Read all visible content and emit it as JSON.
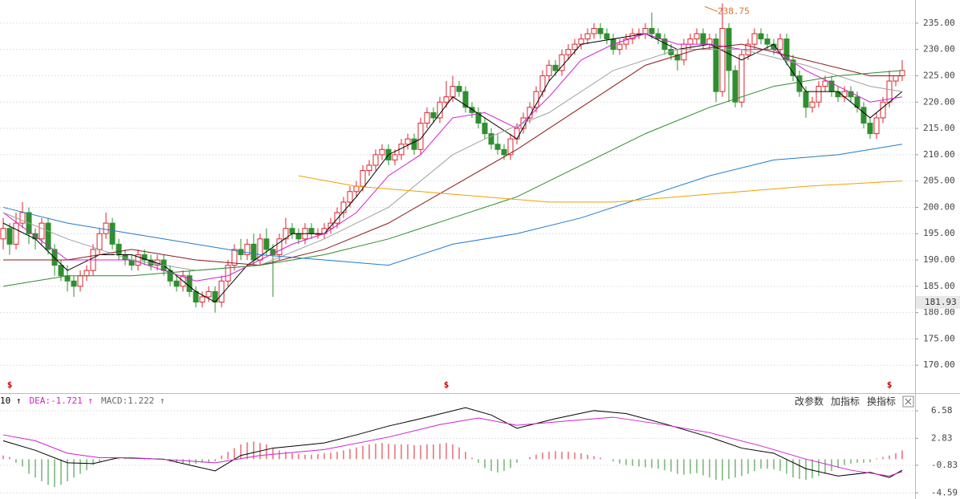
{
  "chart_data": {
    "type": "candlestick",
    "up_color": "#d9262f",
    "down_color": "#2f8f2f",
    "ylim": [
      164.7,
      239.4
    ],
    "yticks": [
      {
        "value": 235,
        "label": "235.00"
      },
      {
        "value": 230,
        "label": "230.00"
      },
      {
        "value": 225,
        "label": "225.00"
      },
      {
        "value": 220,
        "label": "220.00"
      },
      {
        "value": 215,
        "label": "215.00"
      },
      {
        "value": 210,
        "label": "210.00"
      },
      {
        "value": 205,
        "label": "205.00"
      },
      {
        "value": 200,
        "label": "200.00"
      },
      {
        "value": 195,
        "label": "195.00"
      },
      {
        "value": 190,
        "label": "190.00"
      },
      {
        "value": 185,
        "label": "185.00"
      },
      {
        "value": 180,
        "label": "180.00"
      },
      {
        "value": 175,
        "label": "175.00"
      },
      {
        "value": 170,
        "label": "170.00"
      }
    ],
    "grid": true,
    "cursor_price": 181.93,
    "peak_index": 112,
    "marker_text": "$",
    "marker_indices": [
      1,
      69,
      138
    ],
    "candles": [
      [
        194,
        198,
        192,
        196
      ],
      [
        196,
        197,
        191,
        193
      ],
      [
        193,
        199,
        192,
        197
      ],
      [
        197,
        201,
        196,
        199
      ],
      [
        199,
        200,
        193,
        195
      ],
      [
        195,
        196,
        192,
        194
      ],
      [
        194,
        198,
        193,
        197
      ],
      [
        197,
        198,
        191,
        192
      ],
      [
        192,
        193,
        187,
        189
      ],
      [
        189,
        190,
        186,
        187
      ],
      [
        187,
        189,
        184,
        186
      ],
      [
        186,
        187,
        183,
        185
      ],
      [
        185,
        188,
        184,
        187
      ],
      [
        187,
        189,
        186,
        188
      ],
      [
        188,
        193,
        187,
        192
      ],
      [
        192,
        196,
        191,
        195
      ],
      [
        195,
        199,
        194,
        197
      ],
      [
        197,
        198,
        192,
        193
      ],
      [
        193,
        194,
        190,
        191
      ],
      [
        191,
        192,
        189,
        190
      ],
      [
        190,
        191,
        188,
        189
      ],
      [
        189,
        192,
        188,
        191
      ],
      [
        191,
        192,
        189,
        190
      ],
      [
        190,
        191,
        188,
        189
      ],
      [
        189,
        191,
        188,
        190
      ],
      [
        190,
        191,
        187,
        188
      ],
      [
        188,
        189,
        185,
        186
      ],
      [
        186,
        187,
        184,
        185
      ],
      [
        185,
        188,
        184,
        187
      ],
      [
        187,
        188,
        183,
        184
      ],
      [
        184,
        185,
        181,
        182
      ],
      [
        182,
        184,
        181,
        183
      ],
      [
        183,
        185,
        182,
        184
      ],
      [
        184,
        185,
        180,
        182
      ],
      [
        182,
        187,
        181,
        186
      ],
      [
        186,
        190,
        185,
        189
      ],
      [
        189,
        193,
        188,
        192
      ],
      [
        192,
        194,
        190,
        191
      ],
      [
        191,
        194,
        190,
        193
      ],
      [
        193,
        195,
        189,
        190
      ],
      [
        190,
        195,
        189,
        194
      ],
      [
        194,
        196,
        191,
        192
      ],
      [
        192,
        193,
        183,
        191
      ],
      [
        191,
        195,
        190,
        194
      ],
      [
        194,
        198,
        193,
        196
      ],
      [
        196,
        197,
        194,
        195
      ],
      [
        195,
        196,
        193,
        194
      ],
      [
        194,
        197,
        193,
        196
      ],
      [
        196,
        197,
        194,
        195
      ],
      [
        195,
        196,
        194,
        195
      ],
      [
        195,
        197,
        194,
        196
      ],
      [
        196,
        198,
        195,
        197
      ],
      [
        197,
        200,
        196,
        199
      ],
      [
        199,
        202,
        198,
        201
      ],
      [
        201,
        204,
        200,
        203
      ],
      [
        203,
        205,
        202,
        204
      ],
      [
        204,
        208,
        203,
        207
      ],
      [
        207,
        209,
        206,
        208
      ],
      [
        208,
        211,
        207,
        210
      ],
      [
        210,
        212,
        209,
        211
      ],
      [
        211,
        212,
        208,
        209
      ],
      [
        209,
        211,
        208,
        210
      ],
      [
        210,
        213,
        209,
        212
      ],
      [
        212,
        214,
        211,
        213
      ],
      [
        213,
        214,
        210,
        211
      ],
      [
        211,
        217,
        210,
        216
      ],
      [
        216,
        219,
        215,
        218
      ],
      [
        218,
        219,
        216,
        217
      ],
      [
        217,
        221,
        216,
        220
      ],
      [
        220,
        224,
        219,
        221
      ],
      [
        221,
        225,
        220,
        223
      ],
      [
        223,
        224,
        221,
        222
      ],
      [
        222,
        223,
        218,
        219
      ],
      [
        219,
        220,
        217,
        218
      ],
      [
        218,
        219,
        215,
        216
      ],
      [
        216,
        217,
        213,
        214
      ],
      [
        214,
        215,
        211,
        212
      ],
      [
        212,
        214,
        210,
        211
      ],
      [
        211,
        212,
        209,
        210
      ],
      [
        210,
        214,
        209,
        213
      ],
      [
        213,
        216,
        212,
        215
      ],
      [
        215,
        218,
        214,
        217
      ],
      [
        217,
        220,
        216,
        219
      ],
      [
        219,
        223,
        218,
        222
      ],
      [
        222,
        226,
        221,
        225
      ],
      [
        225,
        228,
        224,
        227
      ],
      [
        227,
        228,
        225,
        226
      ],
      [
        226,
        230,
        225,
        229
      ],
      [
        229,
        231,
        228,
        230
      ],
      [
        230,
        232,
        229,
        231
      ],
      [
        231,
        233,
        230,
        232
      ],
      [
        232,
        234,
        231,
        233
      ],
      [
        233,
        235,
        232,
        234
      ],
      [
        234,
        235,
        232,
        233
      ],
      [
        233,
        234,
        231,
        232
      ],
      [
        232,
        233,
        229,
        230
      ],
      [
        230,
        232,
        229,
        231
      ],
      [
        231,
        233,
        230,
        232
      ],
      [
        232,
        234,
        231,
        233
      ],
      [
        233,
        234,
        232,
        233
      ],
      [
        233,
        235,
        232,
        234
      ],
      [
        234,
        237,
        232,
        233
      ],
      [
        233,
        234,
        231,
        232
      ],
      [
        232,
        233,
        229,
        230
      ],
      [
        230,
        231,
        228,
        229
      ],
      [
        229,
        230,
        226,
        228
      ],
      [
        228,
        232,
        227,
        231
      ],
      [
        231,
        233,
        230,
        232
      ],
      [
        232,
        234,
        231,
        233
      ],
      [
        233,
        234,
        230,
        231
      ],
      [
        231,
        233,
        230,
        232
      ],
      [
        232,
        233,
        220,
        222
      ],
      [
        222,
        238.75,
        221,
        234
      ],
      [
        234,
        235,
        220,
        226
      ],
      [
        226,
        227,
        219,
        220
      ],
      [
        220,
        230,
        219,
        229
      ],
      [
        229,
        232,
        228,
        231
      ],
      [
        231,
        234,
        230,
        233
      ],
      [
        233,
        234,
        231,
        232
      ],
      [
        232,
        233,
        230,
        231
      ],
      [
        231,
        232,
        229,
        230
      ],
      [
        230,
        233,
        229,
        232
      ],
      [
        232,
        233,
        227,
        228
      ],
      [
        228,
        229,
        224,
        225
      ],
      [
        225,
        226,
        221,
        222
      ],
      [
        222,
        223,
        217,
        219
      ],
      [
        219,
        221,
        218,
        220
      ],
      [
        220,
        224,
        219,
        223
      ],
      [
        223,
        225,
        222,
        224
      ],
      [
        224,
        225,
        221,
        222
      ],
      [
        222,
        223,
        220,
        221
      ],
      [
        221,
        223,
        220,
        222
      ],
      [
        222,
        223,
        220,
        221
      ],
      [
        221,
        222,
        218,
        219
      ],
      [
        219,
        220,
        215,
        216
      ],
      [
        216,
        217,
        213,
        214
      ],
      [
        214,
        218,
        213,
        217
      ],
      [
        217,
        221,
        216,
        220
      ],
      [
        220,
        226,
        219,
        224
      ],
      [
        224,
        225,
        223,
        225
      ],
      [
        225,
        228,
        224,
        226
      ]
    ],
    "series": [
      {
        "color": "#000000",
        "x": [
          0,
          5,
          10,
          15,
          20,
          25,
          30,
          33,
          38,
          45,
          50,
          55,
          60,
          65,
          70,
          75,
          80,
          85,
          90,
          95,
          100,
          105,
          110,
          115,
          120,
          125,
          130,
          135,
          140
        ],
        "values": [
          197,
          194,
          188,
          191,
          191,
          189,
          184,
          182,
          189,
          195,
          195,
          202,
          210,
          213,
          221,
          217,
          213,
          224,
          231,
          232,
          233,
          230,
          231,
          228,
          231,
          222,
          222,
          217,
          222
        ]
      },
      {
        "color": "#d020d0",
        "x": [
          0,
          10,
          20,
          30,
          35,
          45,
          50,
          55,
          60,
          65,
          70,
          75,
          80,
          85,
          90,
          95,
          100,
          105,
          110,
          115,
          120,
          125,
          130,
          135,
          140
        ],
        "values": [
          199,
          190,
          190,
          186,
          187,
          193,
          195,
          199,
          206,
          210,
          217,
          218,
          215,
          221,
          228,
          231,
          233,
          231,
          231,
          230,
          230,
          226,
          223,
          220,
          221
        ]
      },
      {
        "color": "#a0a0a0",
        "x": [
          0,
          10,
          20,
          30,
          40,
          50,
          60,
          70,
          75,
          85,
          95,
          105,
          115,
          125,
          135,
          140
        ],
        "values": [
          199,
          194,
          190,
          188,
          189,
          194,
          200,
          210,
          213,
          218,
          226,
          230,
          230,
          227,
          223,
          222
        ]
      },
      {
        "color": "#8b1a1a",
        "x": [
          0,
          10,
          20,
          30,
          40,
          50,
          60,
          70,
          80,
          90,
          100,
          108,
          115,
          125,
          135,
          140
        ],
        "values": [
          190,
          190,
          192,
          190,
          189,
          192,
          197,
          204,
          211,
          219,
          227,
          230,
          231,
          228,
          225,
          225
        ]
      },
      {
        "color": "#2e8b2e",
        "x": [
          0,
          10,
          20,
          30,
          40,
          50,
          60,
          70,
          80,
          90,
          100,
          110,
          120,
          130,
          140
        ],
        "values": [
          185,
          187,
          187,
          188,
          189,
          191,
          194,
          198,
          202,
          208,
          214,
          219,
          223,
          225,
          226
        ]
      },
      {
        "color": "#1e7bd0",
        "x": [
          0,
          10,
          20,
          30,
          40,
          50,
          60,
          70,
          80,
          90,
          100,
          110,
          120,
          130,
          140
        ],
        "values": [
          200,
          197,
          195,
          193,
          191,
          190,
          189,
          193,
          195,
          198,
          202,
          206,
          209,
          210,
          212
        ]
      },
      {
        "color": "#f0a000",
        "x": [
          46,
          55,
          65,
          75,
          85,
          95,
          105,
          115,
          125,
          140
        ],
        "values": [
          206,
          204,
          203,
          202,
          201,
          201,
          202,
          203,
          204,
          205
        ]
      }
    ],
    "macd": {
      "header": [
        "10 ↑",
        "DEA:-1.721 ↑",
        "MACD:1.222 ↑"
      ],
      "header_colors": [
        "#000000",
        "#d020d0",
        "#666666"
      ],
      "buttons": [
        "改参数",
        "加指标",
        "换指标"
      ],
      "ylim": [
        -5.42,
        8.98
      ],
      "yticks": [
        6.58,
        2.83,
        -0.83,
        -4.59
      ],
      "histogram": [
        0.5,
        0.3,
        -0.5,
        -1,
        -2,
        -2.5,
        -3,
        -3.5,
        -3.8,
        -3.5,
        -3,
        -2.5,
        -2,
        -1.5,
        -0.8,
        -0.3,
        0,
        0.1,
        0.1,
        0.1,
        0,
        0,
        -0.1,
        0,
        0,
        0,
        -0.3,
        -0.5,
        -0.6,
        -0.7,
        -0.6,
        -0.5,
        -0.4,
        -0.3,
        0.5,
        1,
        1.5,
        2,
        2.3,
        2.4,
        2.2,
        2,
        1.5,
        1.2,
        1,
        0.8,
        0.7,
        0.6,
        0.6,
        0.7,
        0.8,
        0.9,
        1,
        1.2,
        1.4,
        1.6,
        1.8,
        2,
        2.1,
        2.2,
        2.1,
        2,
        2,
        2,
        1.9,
        1.9,
        2,
        2,
        2.1,
        2.2,
        2,
        1.6,
        1,
        0.2,
        -0.5,
        -1.2,
        -1.6,
        -1.8,
        -1.6,
        -1.2,
        -0.5,
        0,
        0.3,
        0.6,
        0.9,
        1,
        1.1,
        1,
        1,
        0.9,
        0.8,
        0.6,
        0.4,
        0.2,
        0,
        -0.3,
        -0.6,
        -0.8,
        -0.9,
        -1,
        -1.1,
        -1.2,
        -1.3,
        -1.5,
        -1.7,
        -2,
        -2.1,
        -2,
        -1.9,
        -2.2,
        -2.5,
        -2.8,
        -2.9,
        -2.7,
        -2.5,
        -2.3,
        -2,
        -1.6,
        -1.3,
        -1.3,
        -1.4,
        -1.6,
        -2,
        -2.5,
        -2.7,
        -2.8,
        -2.6,
        -2.3,
        -2,
        -1.6,
        -1.2,
        -0.8,
        -0.6,
        -0.5,
        -0.5,
        -0.4,
        0.1,
        0.3,
        0.5,
        0.8,
        1.2
      ],
      "series": [
        {
          "color": "#000000",
          "x": [
            0,
            5,
            10,
            14,
            18,
            25,
            30,
            33,
            37,
            42,
            50,
            55,
            60,
            65,
            72,
            76,
            80,
            86,
            92,
            97,
            103,
            110,
            115,
            120,
            125,
            130,
            135,
            138,
            140
          ],
          "values": [
            2.5,
            1.2,
            -0.5,
            -0.6,
            0.2,
            0,
            -1,
            -1.6,
            0.5,
            1.5,
            2.2,
            3.3,
            4.5,
            5.5,
            7,
            6,
            4.2,
            5.5,
            6.6,
            6.2,
            4.8,
            3,
            1.5,
            0.8,
            -1.3,
            -2.3,
            -1.8,
            -2.5,
            -1.5
          ]
        },
        {
          "color": "#d020d0",
          "x": [
            0,
            5,
            10,
            15,
            20,
            28,
            33,
            40,
            50,
            60,
            68,
            74,
            80,
            88,
            95,
            102,
            110,
            118,
            125,
            132,
            138,
            140
          ],
          "values": [
            3.3,
            2.5,
            0.8,
            0.2,
            0.2,
            -0.2,
            -0.5,
            0.5,
            1.3,
            3,
            4.7,
            5.6,
            4.6,
            5.2,
            5.7,
            4.8,
            3.6,
            1.8,
            0,
            -1.5,
            -2.3,
            -1.7
          ]
        }
      ]
    }
  }
}
